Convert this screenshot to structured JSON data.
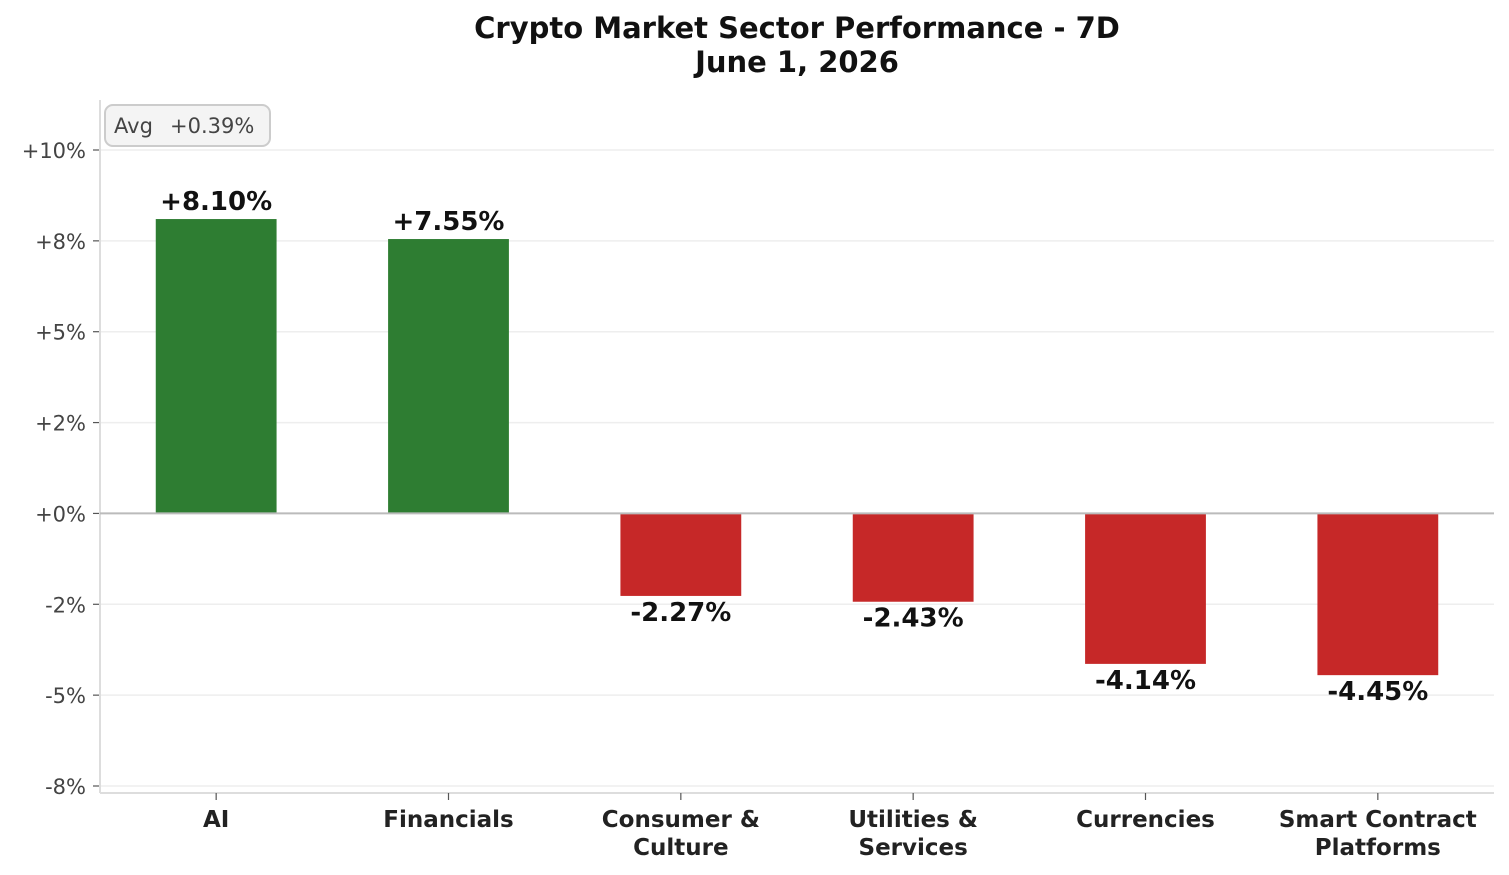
{
  "chart_data": {
    "type": "bar",
    "title": "Crypto Market Sector Performance - 7D",
    "subtitle": "June 1, 2026",
    "categories": [
      [
        "AI"
      ],
      [
        "Financials"
      ],
      [
        "Consumer &",
        "Culture"
      ],
      [
        "Utilities &",
        "Services"
      ],
      [
        "Currencies"
      ],
      [
        "Smart Contract",
        "Platforms"
      ]
    ],
    "values": [
      8.1,
      7.55,
      -2.27,
      -2.43,
      -4.14,
      -4.45
    ],
    "value_labels": [
      "+8.10%",
      "+7.55%",
      "-2.27%",
      "-2.43%",
      "-4.14%",
      "-4.45%"
    ],
    "ylim": [
      -7.5,
      10
    ],
    "yticks": [
      {
        "value": 10,
        "label": "+10%"
      },
      {
        "value": 7.5,
        "label": "+8%"
      },
      {
        "value": 5,
        "label": "+5%"
      },
      {
        "value": 2.5,
        "label": "+2%"
      },
      {
        "value": 0,
        "label": "+0%"
      },
      {
        "value": -2.5,
        "label": "-2%"
      },
      {
        "value": -5,
        "label": "-5%"
      },
      {
        "value": -7.5,
        "label": "-8%"
      }
    ],
    "grid": true,
    "annotation": {
      "label": "Avg",
      "value": "+0.39%",
      "placement": "top-left"
    },
    "colors": {
      "positive": "#2e7d32",
      "negative": "#c62828",
      "grid": "#eeeeee",
      "zero_line": "#bbbbbb",
      "axis": "#dddddd"
    }
  }
}
